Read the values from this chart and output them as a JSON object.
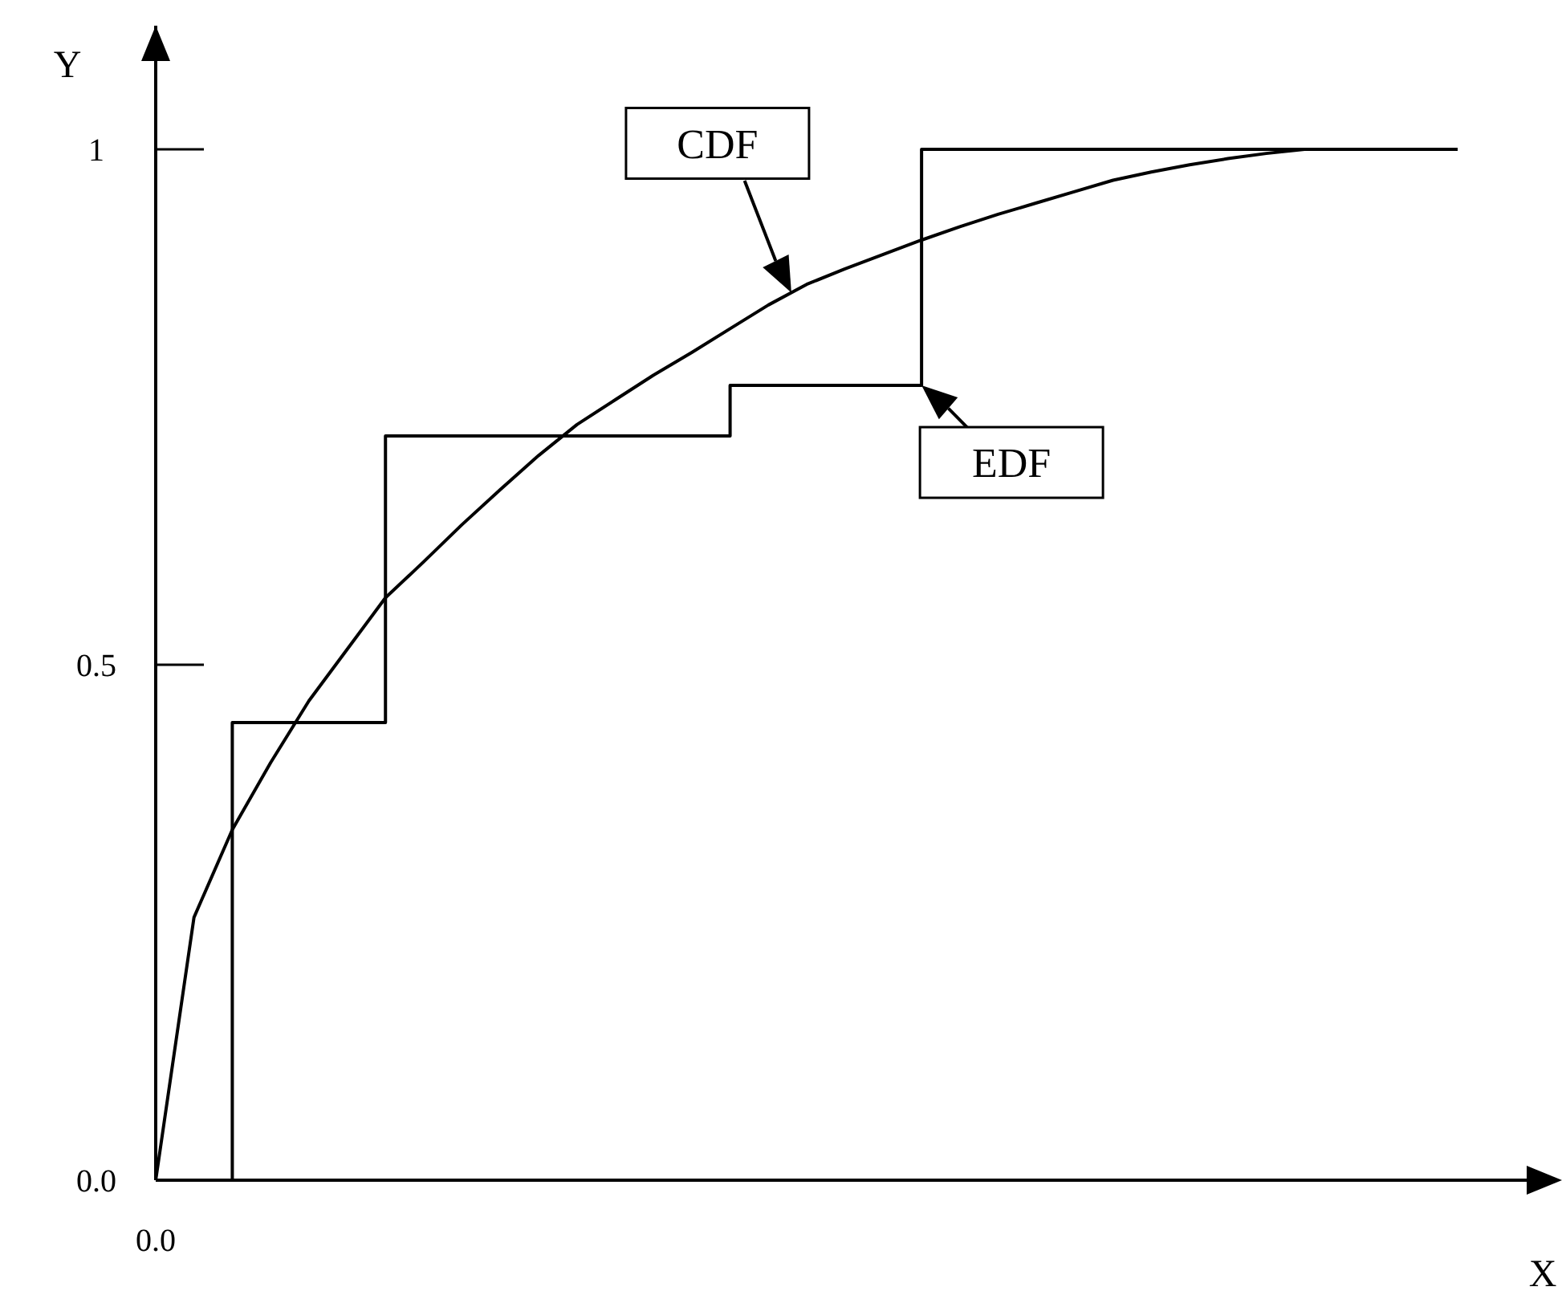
{
  "chart_data": {
    "type": "line",
    "xlabel": "X",
    "ylabel": "Y",
    "categories": [
      "0.0",
      null,
      null,
      null,
      null,
      null,
      null,
      null,
      null,
      null,
      null,
      null,
      null,
      null,
      null,
      null,
      null,
      null,
      null,
      null,
      null,
      null,
      null,
      null,
      null,
      null,
      null,
      null,
      null,
      null,
      null,
      null,
      null,
      null,
      null
    ],
    "ylim": [
      0,
      1.12
    ],
    "yticks": [
      {
        "value": 0,
        "label": "0.0"
      },
      {
        "value": 0.5,
        "label": "0.5"
      },
      {
        "value": 1,
        "label": "1"
      }
    ],
    "grid": false,
    "marker": "none",
    "line_style": "solid",
    "series": [
      {
        "type": "line",
        "color": "#000000",
        "values": [
          0,
          0.255,
          0.34,
          0.405,
          0.465,
          0.515,
          0.565,
          0.6,
          0.636,
          0.67,
          0.703,
          0.733,
          0.757,
          0.781,
          0.803,
          0.826,
          0.849,
          0.869,
          0.884,
          0.898,
          0.912,
          0.925,
          0.937,
          0.948,
          0.959,
          0.97,
          0.978,
          0.985,
          0.991,
          0.996,
          1.0,
          1.0,
          1.0,
          1.0,
          1.0
        ]
      },
      {
        "type": "step",
        "color": "#000000",
        "values": [
          0,
          0,
          0.444,
          0.444,
          0.444,
          0.444,
          0.722,
          0.722,
          0.722,
          0.722,
          0.722,
          0.722,
          0.722,
          0.722,
          0.722,
          0.771,
          0.771,
          0.771,
          0.771,
          0.771,
          1.0,
          1.0,
          1.0,
          1.0,
          1.0,
          1.0,
          1.0,
          1.0,
          1.0,
          1.0,
          1.0,
          1.0,
          1.0,
          1.0,
          1.0
        ]
      }
    ],
    "annotations": [
      "CDF",
      "EDF"
    ]
  }
}
